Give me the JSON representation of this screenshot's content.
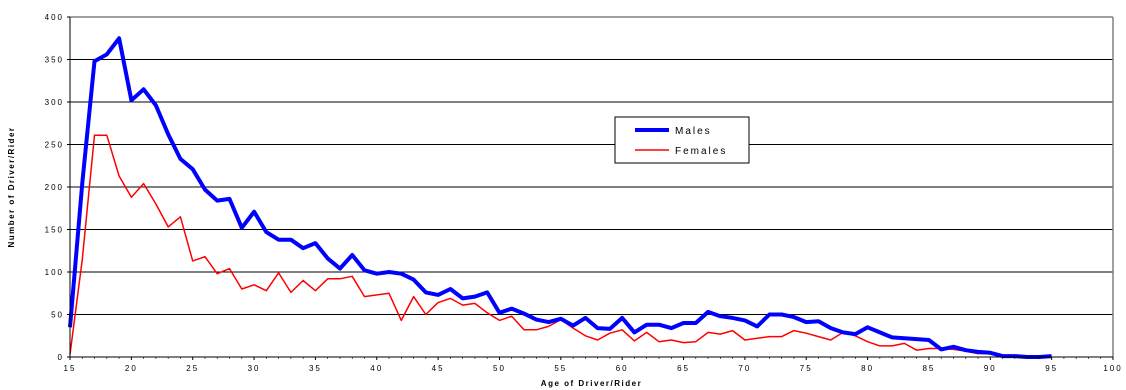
{
  "chart_data": {
    "type": "line",
    "title": "",
    "xlabel": "Age of Driver/Rider",
    "ylabel": "Number of Driver/Rider",
    "xlim": [
      15,
      100
    ],
    "ylim": [
      0,
      400
    ],
    "xticks": [
      15,
      20,
      25,
      30,
      35,
      40,
      45,
      50,
      55,
      60,
      65,
      70,
      75,
      80,
      85,
      90,
      95,
      100
    ],
    "yticks": [
      0,
      50,
      100,
      150,
      200,
      250,
      300,
      350,
      400
    ],
    "grid": "horizontal",
    "legend_position": "center-right",
    "series": [
      {
        "name": "Males",
        "color": "#0000ff",
        "x": [
          15,
          16,
          17,
          18,
          19,
          20,
          21,
          22,
          23,
          24,
          25,
          26,
          27,
          28,
          29,
          30,
          31,
          32,
          33,
          34,
          35,
          36,
          37,
          38,
          39,
          40,
          41,
          42,
          43,
          44,
          45,
          46,
          47,
          48,
          49,
          50,
          51,
          52,
          53,
          54,
          55,
          56,
          57,
          58,
          59,
          60,
          61,
          62,
          63,
          64,
          65,
          66,
          67,
          68,
          69,
          70,
          71,
          72,
          73,
          74,
          75,
          76,
          77,
          78,
          79,
          80,
          81,
          82,
          83,
          84,
          85,
          86,
          87,
          88,
          89,
          90,
          91,
          92,
          93,
          94,
          95
        ],
        "y": [
          35,
          205,
          348,
          356,
          375,
          302,
          315,
          296,
          262,
          233,
          221,
          197,
          184,
          186,
          152,
          171,
          147,
          138,
          138,
          128,
          134,
          116,
          104,
          120,
          102,
          98,
          100,
          98,
          91,
          76,
          73,
          80,
          69,
          71,
          76,
          52,
          57,
          51,
          44,
          41,
          45,
          37,
          46,
          34,
          33,
          46,
          29,
          38,
          38,
          34,
          40,
          40,
          53,
          48,
          46,
          43,
          36,
          50,
          50,
          47,
          41,
          42,
          34,
          29,
          27,
          35,
          29,
          23,
          22,
          21,
          20,
          9,
          12,
          8,
          6,
          5,
          1,
          1,
          0,
          0,
          1
        ]
      },
      {
        "name": "Females",
        "color": "#ff0000",
        "x": [
          15,
          16,
          17,
          18,
          19,
          20,
          21,
          22,
          23,
          24,
          25,
          26,
          27,
          28,
          29,
          30,
          31,
          32,
          33,
          34,
          35,
          36,
          37,
          38,
          39,
          40,
          41,
          42,
          43,
          44,
          45,
          46,
          47,
          48,
          49,
          50,
          51,
          52,
          53,
          54,
          55,
          56,
          57,
          58,
          59,
          60,
          61,
          62,
          63,
          64,
          65,
          66,
          67,
          68,
          69,
          70,
          71,
          72,
          73,
          74,
          75,
          76,
          77,
          78,
          79,
          80,
          81,
          82,
          83,
          84,
          85,
          86,
          87,
          88,
          89,
          90,
          91,
          92,
          93,
          94,
          95
        ],
        "y": [
          3,
          115,
          261,
          261,
          213,
          188,
          204,
          180,
          153,
          165,
          113,
          118,
          98,
          104,
          80,
          85,
          78,
          99,
          76,
          90,
          78,
          92,
          92,
          95,
          71,
          73,
          75,
          43,
          71,
          50,
          64,
          69,
          61,
          63,
          52,
          43,
          48,
          32,
          32,
          36,
          44,
          34,
          25,
          20,
          28,
          32,
          19,
          29,
          18,
          20,
          17,
          18,
          29,
          27,
          31,
          20,
          22,
          24,
          24,
          31,
          28,
          24,
          20,
          29,
          25,
          18,
          13,
          13,
          16,
          8,
          10,
          10,
          9,
          7,
          4,
          4,
          0,
          0,
          0,
          0,
          0
        ]
      }
    ]
  }
}
